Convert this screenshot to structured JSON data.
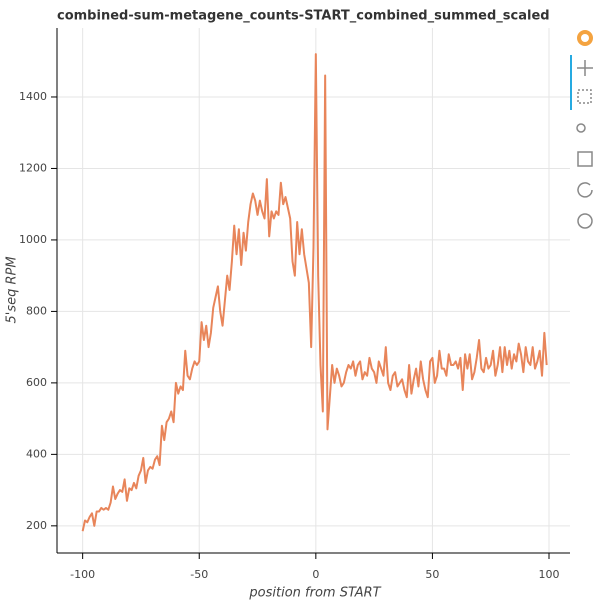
{
  "chart_data": {
    "type": "line",
    "title": "combined-sum-metagene_counts-START_combined_summed_scaled",
    "x_label": "position from START",
    "y_label": "5'seq RPM",
    "color": "#e8855a",
    "grid": true,
    "xlim": [
      -111,
      109
    ],
    "ylim": [
      124,
      1593
    ],
    "xticks": [
      -100,
      -50,
      0,
      50,
      100
    ],
    "yticks": [
      200,
      400,
      600,
      800,
      1000,
      1200,
      1400
    ],
    "x": [
      -100,
      -99,
      -98,
      -97,
      -96,
      -95,
      -94,
      -93,
      -92,
      -91,
      -90,
      -89,
      -88,
      -87,
      -86,
      -85,
      -84,
      -83,
      -82,
      -81,
      -80,
      -79,
      -78,
      -77,
      -76,
      -75,
      -74,
      -73,
      -72,
      -71,
      -70,
      -69,
      -68,
      -67,
      -66,
      -65,
      -64,
      -63,
      -62,
      -61,
      -60,
      -59,
      -58,
      -57,
      -56,
      -55,
      -54,
      -53,
      -52,
      -51,
      -50,
      -49,
      -48,
      -47,
      -46,
      -45,
      -44,
      -43,
      -42,
      -41,
      -40,
      -39,
      -38,
      -37,
      -36,
      -35,
      -34,
      -33,
      -32,
      -31,
      -30,
      -29,
      -28,
      -27,
      -26,
      -25,
      -24,
      -23,
      -22,
      -21,
      -20,
      -19,
      -18,
      -17,
      -16,
      -15,
      -14,
      -13,
      -12,
      -11,
      -10,
      -9,
      -8,
      -7,
      -6,
      -5,
      -4,
      -3,
      -2,
      -1,
      0,
      1,
      2,
      3,
      4,
      5,
      6,
      7,
      8,
      9,
      10,
      11,
      12,
      13,
      14,
      15,
      16,
      17,
      18,
      19,
      20,
      21,
      22,
      23,
      24,
      25,
      26,
      27,
      28,
      29,
      30,
      31,
      32,
      33,
      34,
      35,
      36,
      37,
      38,
      39,
      40,
      41,
      42,
      43,
      44,
      45,
      46,
      47,
      48,
      49,
      50,
      51,
      52,
      53,
      54,
      55,
      56,
      57,
      58,
      59,
      60,
      61,
      62,
      63,
      64,
      65,
      66,
      67,
      68,
      69,
      70,
      71,
      72,
      73,
      74,
      75,
      76,
      77,
      78,
      79,
      80,
      81,
      82,
      83,
      84,
      85,
      86,
      87,
      88,
      89,
      90,
      91,
      92,
      93,
      94,
      95,
      96,
      97,
      98,
      99
    ],
    "values": [
      185,
      215,
      210,
      225,
      235,
      200,
      240,
      240,
      250,
      245,
      250,
      245,
      265,
      310,
      275,
      290,
      300,
      295,
      330,
      270,
      305,
      300,
      320,
      305,
      340,
      355,
      390,
      320,
      355,
      365,
      360,
      385,
      395,
      370,
      480,
      440,
      490,
      500,
      520,
      490,
      600,
      570,
      590,
      580,
      690,
      620,
      610,
      640,
      660,
      650,
      660,
      770,
      720,
      760,
      700,
      740,
      810,
      840,
      870,
      800,
      760,
      830,
      900,
      860,
      940,
      1040,
      960,
      1030,
      930,
      1020,
      970,
      1050,
      1100,
      1130,
      1110,
      1070,
      1110,
      1080,
      1060,
      1170,
      1010,
      1080,
      1060,
      1080,
      1070,
      1160,
      1100,
      1120,
      1090,
      1060,
      940,
      900,
      1050,
      960,
      1030,
      960,
      920,
      880,
      700,
      980,
      1520,
      900,
      650,
      520,
      1460,
      470,
      560,
      650,
      600,
      640,
      620,
      590,
      600,
      630,
      650,
      640,
      660,
      620,
      650,
      660,
      610,
      630,
      620,
      670,
      640,
      630,
      600,
      660,
      640,
      620,
      700,
      600,
      580,
      620,
      630,
      590,
      600,
      610,
      580,
      560,
      650,
      570,
      610,
      640,
      590,
      660,
      610,
      580,
      560,
      660,
      670,
      600,
      620,
      690,
      640,
      640,
      620,
      680,
      650,
      650,
      660,
      640,
      670,
      580,
      680,
      640,
      680,
      610,
      630,
      670,
      720,
      640,
      630,
      670,
      640,
      650,
      690,
      620,
      650,
      700,
      630,
      700,
      650,
      690,
      640,
      680,
      660,
      710,
      680,
      630,
      700,
      660,
      650,
      700,
      640,
      660,
      690,
      620,
      740,
      650
    ]
  }
}
